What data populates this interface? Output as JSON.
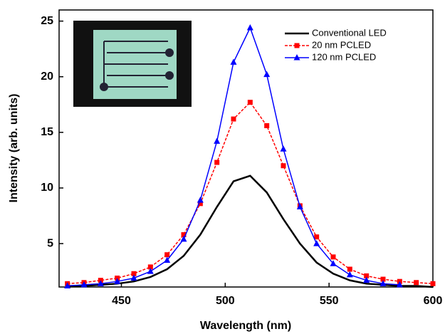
{
  "chart_data": {
    "type": "line",
    "x_label": "Wavelength (nm)",
    "y_label": "Intensity (arb. units)",
    "x": [
      424,
      432,
      440,
      448,
      456,
      464,
      472,
      480,
      488,
      496,
      504,
      512,
      520,
      528,
      536,
      544,
      552,
      560,
      568,
      576,
      584,
      592,
      600
    ],
    "series": [
      {
        "name": "Conventional LED",
        "color": "#000000",
        "marker": "none",
        "values": [
          1.2,
          1.2,
          1.3,
          1.4,
          1.6,
          2.0,
          2.7,
          3.9,
          5.8,
          8.3,
          10.6,
          11.1,
          9.6,
          7.2,
          5.0,
          3.3,
          2.3,
          1.7,
          1.4,
          1.3,
          1.2,
          1.2,
          1.1
        ]
      },
      {
        "name": "20 nm PCLED",
        "color": "#ff0000",
        "marker": "square",
        "dash": true,
        "values": [
          1.4,
          1.5,
          1.7,
          1.9,
          2.3,
          2.9,
          4.0,
          5.8,
          8.6,
          12.3,
          16.2,
          17.7,
          15.6,
          12.0,
          8.4,
          5.6,
          3.8,
          2.7,
          2.1,
          1.8,
          1.6,
          1.5,
          1.4
        ]
      },
      {
        "name": "120 nm PCLED",
        "color": "#0000ff",
        "marker": "triangle",
        "values": [
          1.2,
          1.3,
          1.4,
          1.6,
          1.9,
          2.5,
          3.5,
          5.4,
          8.9,
          14.2,
          21.3,
          24.4,
          20.2,
          13.5,
          8.3,
          5.0,
          3.2,
          2.2,
          1.7,
          1.4,
          1.3,
          null,
          null
        ]
      }
    ],
    "xlim": [
      420,
      600
    ],
    "xticks": [
      450,
      500,
      550,
      600
    ],
    "ylim": [
      1.1,
      26
    ],
    "yticks": [
      5,
      10,
      15,
      20,
      25
    ]
  }
}
